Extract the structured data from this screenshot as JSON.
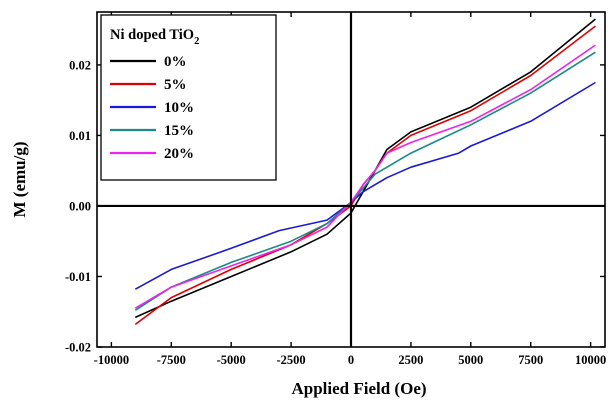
{
  "chart_data": {
    "type": "line",
    "xlabel": "Applied Field (Oe)",
    "ylabel": "M (emu/g)",
    "xlim": [
      -10600,
      10600
    ],
    "ylim": [
      -0.02,
      0.0275
    ],
    "x_ticks": [
      -10000,
      -7500,
      -5000,
      -2500,
      0,
      2500,
      5000,
      7500,
      10000
    ],
    "x_tick_labels": [
      "-10000",
      "-7500",
      "-5000",
      "-2500",
      "0",
      "2500",
      "5000",
      "7500",
      "10000"
    ],
    "y_ticks": [
      -0.02,
      -0.01,
      0.0,
      0.01,
      0.02
    ],
    "y_tick_labels": [
      "-0.02",
      "-0.01",
      "0.00",
      "0.01",
      "0.02"
    ],
    "legend": {
      "title_main": "Ni  doped TiO",
      "title_sub": "2",
      "placement": "top-left"
    },
    "series": [
      {
        "name": "0%",
        "color": "#000000",
        "x": [
          -9000,
          -7500,
          -5000,
          -2500,
          -1000,
          0,
          500,
          1000,
          1500,
          2500,
          5000,
          7500,
          10200
        ],
        "y": [
          -0.0158,
          -0.0135,
          -0.01,
          -0.0065,
          -0.004,
          -0.001,
          0.002,
          0.005,
          0.008,
          0.0105,
          0.014,
          0.019,
          0.0265
        ]
      },
      {
        "name": "5%",
        "color": "#e00000",
        "x": [
          -9000,
          -7500,
          -5000,
          -2500,
          -1000,
          0,
          500,
          1000,
          1500,
          2500,
          5000,
          7500,
          10200
        ],
        "y": [
          -0.0168,
          -0.013,
          -0.009,
          -0.0055,
          -0.0025,
          0.0,
          0.003,
          0.005,
          0.0075,
          0.01,
          0.0135,
          0.0185,
          0.0255
        ]
      },
      {
        "name": "10%",
        "color": "#1a1ad6",
        "x": [
          -9000,
          -7500,
          -5000,
          -3000,
          -1000,
          0,
          500,
          1500,
          2500,
          4500,
          5000,
          7500,
          10200
        ],
        "y": [
          -0.0118,
          -0.009,
          -0.006,
          -0.0035,
          -0.002,
          0.0005,
          0.002,
          0.004,
          0.0055,
          0.0075,
          0.0085,
          0.012,
          0.0175
        ]
      },
      {
        "name": "15%",
        "color": "#1a8a8a",
        "x": [
          -9000,
          -7500,
          -5000,
          -2500,
          -1000,
          0,
          500,
          1000,
          2500,
          5000,
          7500,
          10200
        ],
        "y": [
          -0.0148,
          -0.0115,
          -0.008,
          -0.005,
          -0.0025,
          0.0005,
          0.0025,
          0.0045,
          0.0075,
          0.0115,
          0.016,
          0.0218
        ]
      },
      {
        "name": "20%",
        "color": "#ee22ee",
        "x": [
          -9000,
          -7500,
          -5000,
          -2500,
          -1000,
          0,
          500,
          1000,
          1500,
          2500,
          5000,
          7500,
          10200
        ],
        "y": [
          -0.0145,
          -0.0115,
          -0.0085,
          -0.0055,
          -0.003,
          0.0005,
          0.003,
          0.005,
          0.0075,
          0.009,
          0.012,
          0.0165,
          0.0228
        ]
      }
    ]
  }
}
